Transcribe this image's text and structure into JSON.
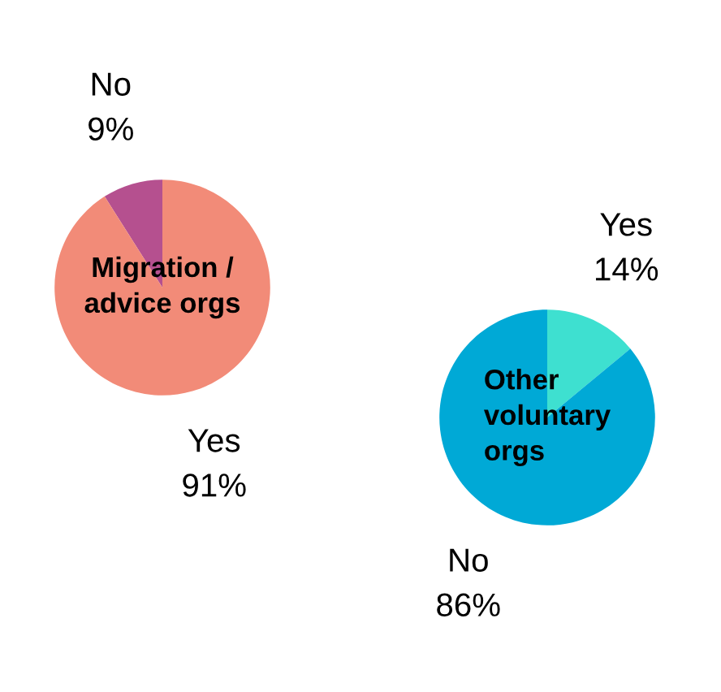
{
  "chart_data": [
    {
      "type": "pie",
      "title": "Migration /\nadvice orgs",
      "categories": [
        "No",
        "Yes"
      ],
      "values": [
        9,
        91
      ],
      "value_labels": [
        "9%",
        "91%"
      ],
      "colors": [
        "#b5508f",
        "#f28b78"
      ]
    },
    {
      "type": "pie",
      "title": "Other\nvoluntary\norgs",
      "categories": [
        "Yes",
        "No"
      ],
      "values": [
        14,
        86
      ],
      "value_labels": [
        "14%",
        "86%"
      ],
      "colors": [
        "#3ee0d0",
        "#00a9d6"
      ]
    }
  ]
}
